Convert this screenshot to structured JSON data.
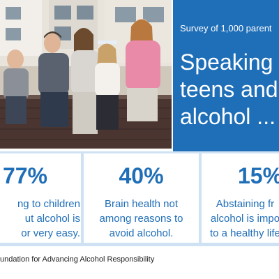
{
  "hero": {
    "survey": "Survey of 1,000 parent",
    "headline_lines": [
      "Speaking o",
      "teens and",
      "alcohol ..."
    ]
  },
  "stats": [
    {
      "pct": "77%",
      "lines": [
        "ng to children",
        "ut alcohol is",
        "or very easy."
      ]
    },
    {
      "pct": "40%",
      "lines": [
        "Brain health not",
        "among reasons to",
        "avoid alcohol."
      ]
    },
    {
      "pct": "15%",
      "lines": [
        "Abstaining fr",
        "alcohol is impo",
        "to a healthy life"
      ]
    }
  ],
  "source": "undation for Advancing Alcohol Responsibility",
  "colors": {
    "brand_blue": "#1f6eb8",
    "light_blue": "#cfe2f3",
    "text": "#222222"
  },
  "photo": {
    "subject": "group of teenagers sitting on a brick wall"
  }
}
